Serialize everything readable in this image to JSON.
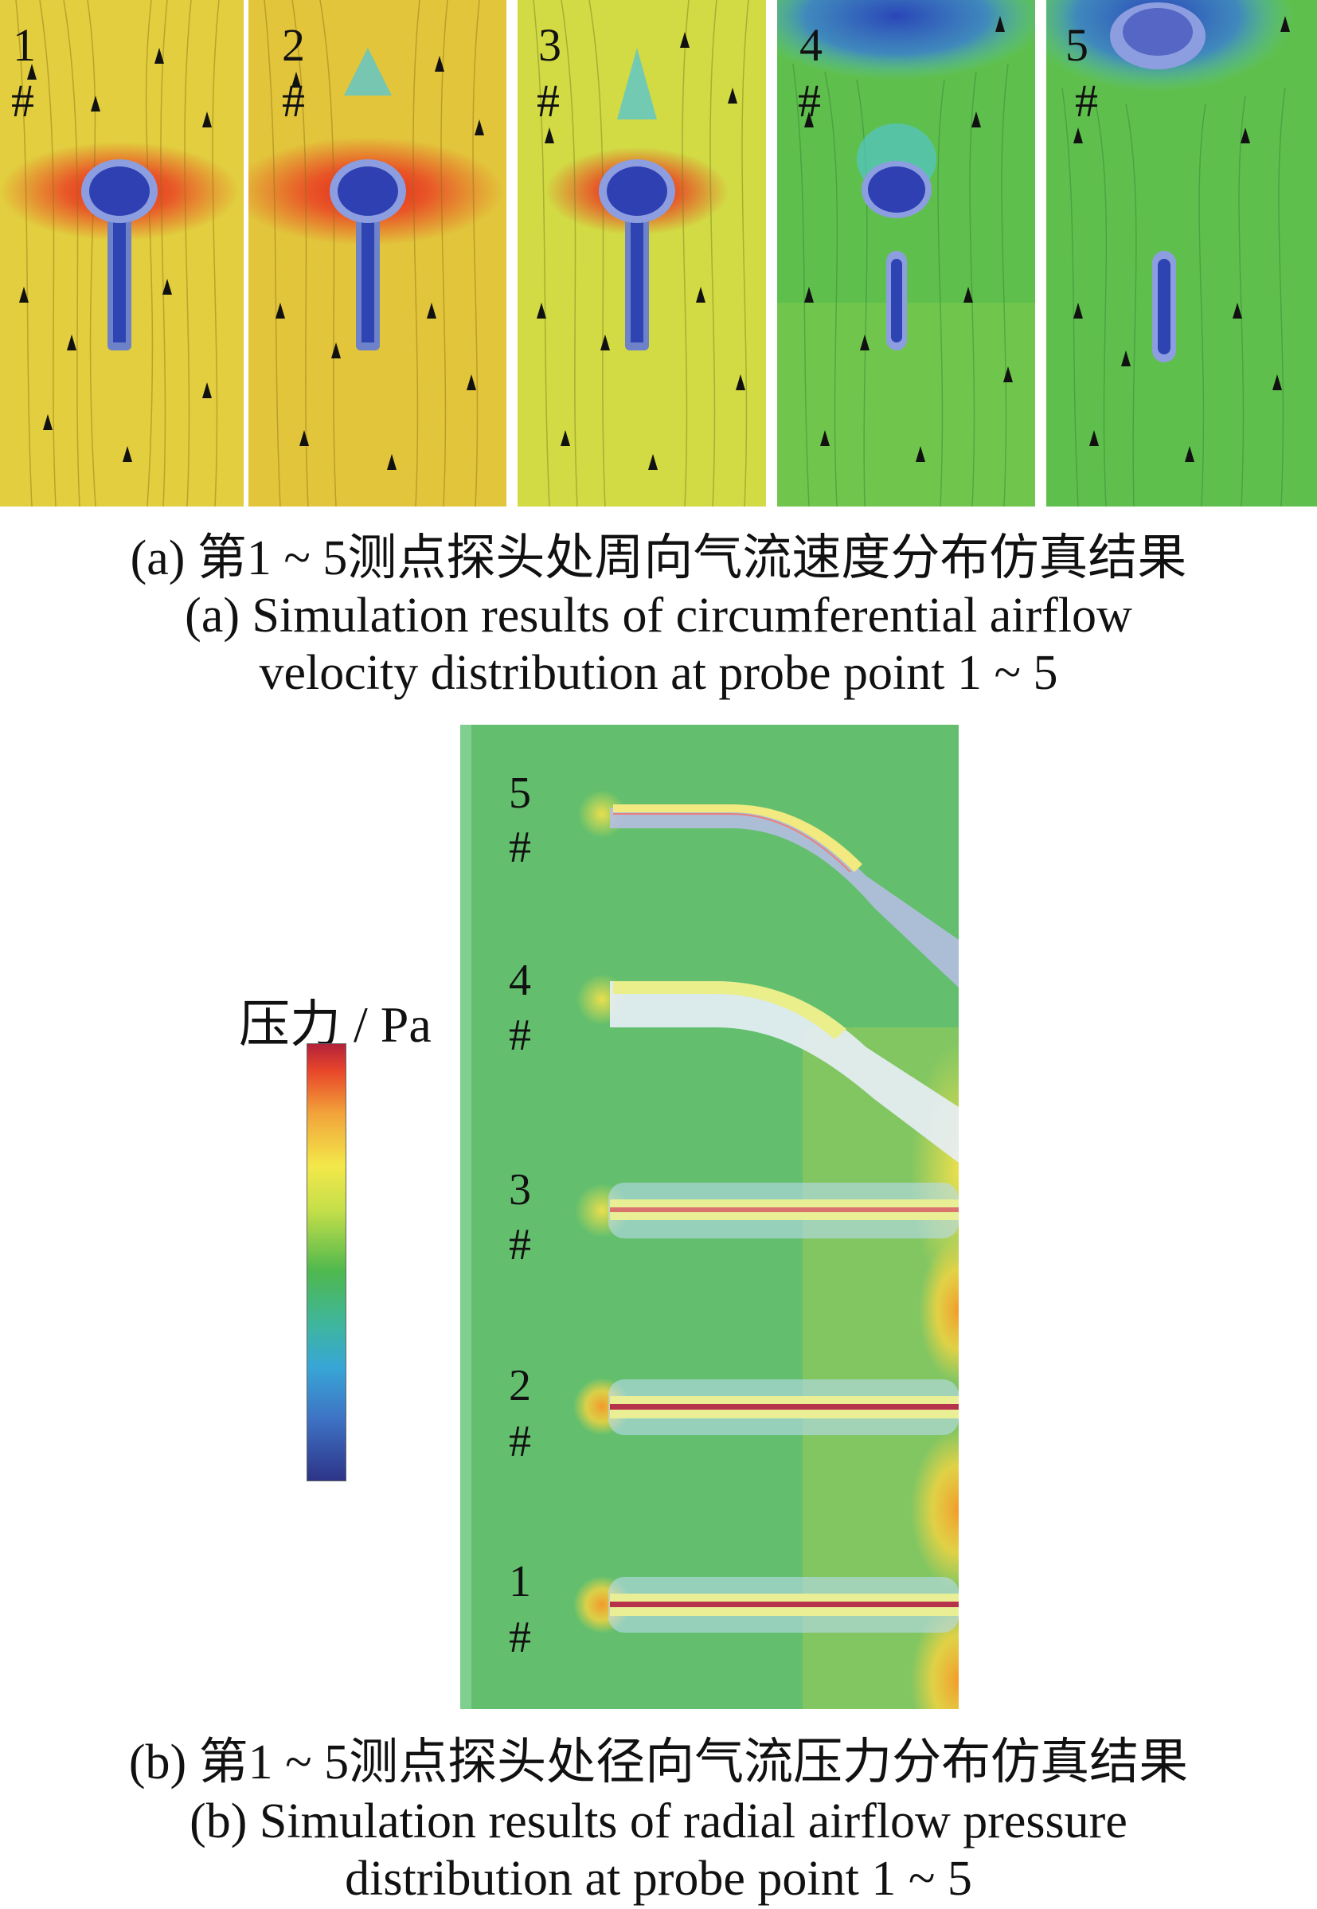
{
  "part_a": {
    "panels": [
      {
        "num": "1",
        "hash": "#"
      },
      {
        "num": "2",
        "hash": "#"
      },
      {
        "num": "3",
        "hash": "#"
      },
      {
        "num": "4",
        "hash": "#"
      },
      {
        "num": "5",
        "hash": "#"
      }
    ],
    "caption_cn": "(a) 第1 ~ 5测点探头处周向气流速度分布仿真结果",
    "caption_en_1": "(a) Simulation results of circumferential airflow",
    "caption_en_2": "velocity distribution at probe point 1 ~ 5"
  },
  "part_b": {
    "legend_title": "压力 / Pa",
    "probes": [
      {
        "num": "5",
        "hash": "#"
      },
      {
        "num": "4",
        "hash": "#"
      },
      {
        "num": "3",
        "hash": "#"
      },
      {
        "num": "2",
        "hash": "#"
      },
      {
        "num": "1",
        "hash": "#"
      }
    ],
    "caption_cn": "(b) 第1 ~ 5测点探头处径向气流压力分布仿真结果",
    "caption_en_1": "(b) Simulation results of radial airflow pressure",
    "caption_en_2": "distribution at probe point 1 ~ 5"
  },
  "colors": {
    "colorbar": [
      "#b3223b",
      "#e8452a",
      "#f2a43a",
      "#f3e84a",
      "#c5df49",
      "#4fb84e",
      "#3fb69c",
      "#38a6d6",
      "#3e72c4",
      "#2d3487"
    ]
  }
}
